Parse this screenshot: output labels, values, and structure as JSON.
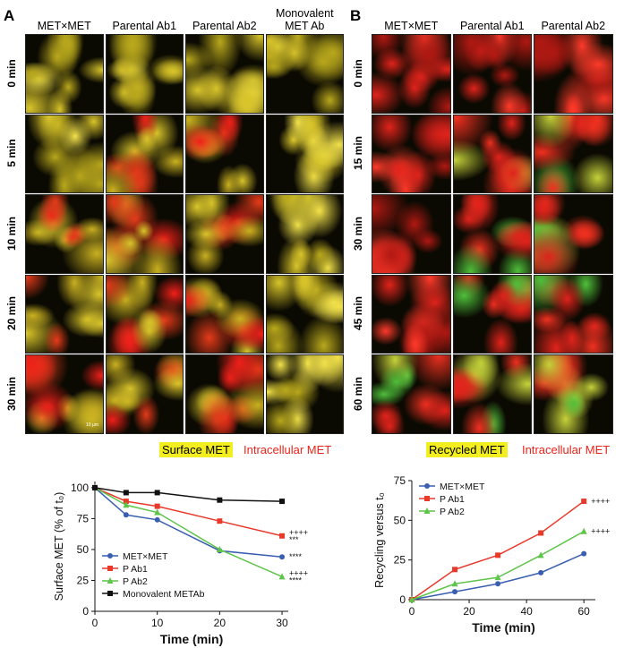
{
  "panel_a": {
    "label": "A",
    "columns": [
      "MET×MET",
      "Parental Ab1",
      "Parental Ab2",
      "Monovalent MET Ab"
    ],
    "rows": [
      "0 min",
      "5 min",
      "10 min",
      "20 min",
      "30 min"
    ],
    "scale_bar": "10 µm",
    "legend": [
      "Surface MET",
      "Intracellular MET"
    ]
  },
  "panel_b": {
    "label": "B",
    "columns": [
      "MET×MET",
      "Parental Ab1",
      "Parental Ab2"
    ],
    "rows": [
      "0 min",
      "15 min",
      "30 min",
      "45 min",
      "60 min"
    ],
    "legend": [
      "Recycled MET",
      "Intracellular MET"
    ]
  },
  "chart_data": [
    {
      "type": "line",
      "xlabel": "Time (min)",
      "ylabel": "Surface MET (% of t₀)",
      "x": [
        0,
        5,
        10,
        20,
        30
      ],
      "xlim": [
        0,
        31
      ],
      "xticks": [
        0,
        10,
        20,
        30
      ],
      "ylim": [
        0,
        105
      ],
      "yticks": [
        0,
        25,
        50,
        75,
        100
      ],
      "legend": "lower left",
      "series": [
        {
          "name": "MET×MET",
          "color": "#3a5fb0",
          "marker": "circle",
          "values": [
            100,
            78,
            74,
            49,
            44
          ],
          "annotation": [
            "****"
          ]
        },
        {
          "name": "P Ab1",
          "color": "#e8392b",
          "marker": "square",
          "values": [
            100,
            89,
            85,
            73,
            61
          ],
          "annotation": [
            "++++",
            "***"
          ]
        },
        {
          "name": "P Ab2",
          "color": "#5ec44a",
          "marker": "triangle",
          "values": [
            100,
            86,
            80,
            50,
            28
          ],
          "annotation": [
            "++++",
            "****"
          ]
        },
        {
          "name": "Monovalent METAb",
          "color": "#111111",
          "marker": "square",
          "values": [
            100,
            96,
            96,
            90,
            89
          ]
        }
      ]
    },
    {
      "type": "line",
      "xlabel": "Time (min)",
      "ylabel": "Recycling versus t₀",
      "x": [
        0,
        15,
        30,
        45,
        60
      ],
      "xlim": [
        0,
        64
      ],
      "xticks": [
        0,
        20,
        40,
        60
      ],
      "ylim": [
        0,
        75
      ],
      "yticks": [
        0,
        25,
        50,
        75
      ],
      "legend": "upper left",
      "series": [
        {
          "name": "MET×MET",
          "color": "#3a5fb0",
          "marker": "circle",
          "values": [
            0,
            5,
            10,
            17,
            29
          ]
        },
        {
          "name": "P Ab1",
          "color": "#e8392b",
          "marker": "square",
          "values": [
            0,
            19,
            28,
            42,
            62
          ],
          "annotation": [
            "++++"
          ]
        },
        {
          "name": "P Ab2",
          "color": "#5ec44a",
          "marker": "triangle",
          "values": [
            0,
            10,
            14,
            28,
            43
          ],
          "annotation": [
            "++++"
          ]
        }
      ]
    }
  ]
}
